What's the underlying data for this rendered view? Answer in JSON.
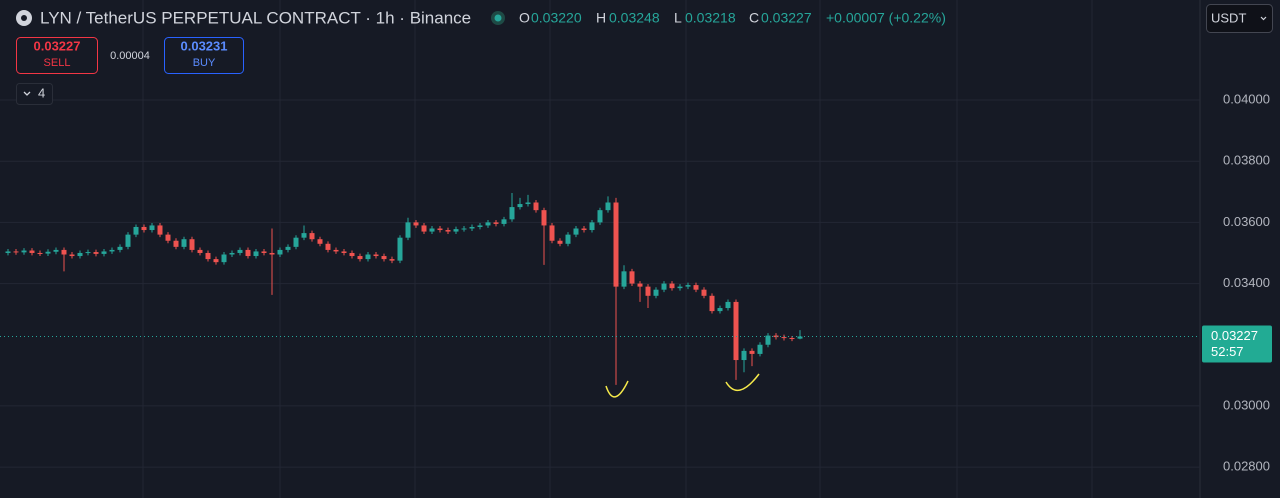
{
  "chart_data": {
    "type": "candlestick",
    "title": "LYN / TetherUS PERPETUAL CONTRACT · 1h · Binance",
    "legend": {
      "o_label": "O",
      "o": "0.03220",
      "h_label": "H",
      "h": "0.03248",
      "l_label": "L",
      "l": "0.03218",
      "c_label": "C",
      "c": "0.03227",
      "change": "+0.00007 (+0.22%)"
    },
    "up_color": "#26a69a",
    "down_color": "#ef5350",
    "ylim": [
      0.02699,
      0.04327
    ],
    "yticks": [
      {
        "value": 0.028,
        "label": "0.02800"
      },
      {
        "value": 0.03,
        "label": "0.03000"
      },
      {
        "value": 0.034,
        "label": "0.03400"
      },
      {
        "value": 0.036,
        "label": "0.03600"
      },
      {
        "value": 0.038,
        "label": "0.03800"
      },
      {
        "value": 0.04,
        "label": "0.04000"
      }
    ],
    "grid": true,
    "last_price": {
      "value": 0.03227,
      "label": "0.03227",
      "countdown": "52:57"
    },
    "open": [
      0.035,
      0.03505,
      0.03502,
      0.03508,
      0.035,
      0.03498,
      0.03504,
      0.0351,
      0.03495,
      0.0349,
      0.035,
      0.03503,
      0.03497,
      0.03505,
      0.0351,
      0.0352,
      0.0356,
      0.03585,
      0.03575,
      0.0359,
      0.0356,
      0.0354,
      0.0352,
      0.03545,
      0.0351,
      0.035,
      0.0348,
      0.0347,
      0.03495,
      0.035,
      0.0351,
      0.0349,
      0.03505,
      0.035,
      0.03495,
      0.0351,
      0.0352,
      0.0355,
      0.03565,
      0.03545,
      0.0353,
      0.0351,
      0.03505,
      0.035,
      0.0349,
      0.0348,
      0.03495,
      0.0349,
      0.0348,
      0.03475,
      0.0355,
      0.036,
      0.0359,
      0.0357,
      0.0358,
      0.03575,
      0.0357,
      0.03578,
      0.0358,
      0.03585,
      0.0359,
      0.036,
      0.03595,
      0.0361,
      0.0365,
      0.0366,
      0.03665,
      0.0364,
      0.0359,
      0.0354,
      0.0353,
      0.0356,
      0.0358,
      0.03575,
      0.036,
      0.0364,
      0.03665,
      0.0339,
      0.0344,
      0.034,
      0.0339,
      0.0336,
      0.0338,
      0.034,
      0.03385,
      0.0339,
      0.03395,
      0.0338,
      0.0336,
      0.0331,
      0.0332,
      0.0334,
      0.0315,
      0.0318,
      0.0317,
      0.032,
      0.0323,
      0.03225,
      0.03222,
      0.0322
    ],
    "high": [
      0.03513,
      0.03513,
      0.03516,
      0.03516,
      0.03508,
      0.03512,
      0.03518,
      0.03518,
      0.03503,
      0.03508,
      0.03511,
      0.03511,
      0.03513,
      0.03518,
      0.03528,
      0.03568,
      0.03593,
      0.03593,
      0.03598,
      0.03598,
      0.03568,
      0.03548,
      0.03553,
      0.03553,
      0.03518,
      0.03508,
      0.03488,
      0.03503,
      0.03508,
      0.03518,
      0.03518,
      0.03513,
      0.03513,
      0.0358,
      0.03518,
      0.03528,
      0.03558,
      0.0359,
      0.03573,
      0.03553,
      0.03538,
      0.03518,
      0.03513,
      0.03508,
      0.03498,
      0.03503,
      0.03503,
      0.03498,
      0.03488,
      0.03558,
      0.03615,
      0.03608,
      0.03598,
      0.03588,
      0.03588,
      0.03583,
      0.03586,
      0.03588,
      0.03593,
      0.03598,
      0.03608,
      0.03608,
      0.03618,
      0.03696,
      0.0368,
      0.0369,
      0.03673,
      0.03648,
      0.03598,
      0.03548,
      0.03568,
      0.03588,
      0.03588,
      0.03608,
      0.03648,
      0.03685,
      0.0368,
      0.0346,
      0.03448,
      0.03408,
      0.03398,
      0.03388,
      0.03408,
      0.03408,
      0.03398,
      0.03403,
      0.03403,
      0.03388,
      0.03368,
      0.03328,
      0.03348,
      0.03348,
      0.03188,
      0.03188,
      0.03208,
      0.03238,
      0.03238,
      0.03233,
      0.03228,
      0.03248
    ],
    "low": [
      0.03492,
      0.03494,
      0.03494,
      0.03492,
      0.0349,
      0.0349,
      0.03496,
      0.0344,
      0.03482,
      0.03482,
      0.03492,
      0.03489,
      0.03489,
      0.03497,
      0.03502,
      0.03512,
      0.03552,
      0.03567,
      0.03567,
      0.03552,
      0.03532,
      0.03512,
      0.03512,
      0.03502,
      0.03492,
      0.03472,
      0.03462,
      0.03462,
      0.03487,
      0.03492,
      0.03482,
      0.03482,
      0.03492,
      0.03363,
      0.03487,
      0.03502,
      0.03512,
      0.03542,
      0.03537,
      0.03522,
      0.03502,
      0.03497,
      0.03492,
      0.03482,
      0.03472,
      0.03472,
      0.03482,
      0.03472,
      0.03467,
      0.03467,
      0.03542,
      0.03582,
      0.03562,
      0.03562,
      0.03567,
      0.03562,
      0.03562,
      0.0357,
      0.03572,
      0.03577,
      0.03582,
      0.03587,
      0.03587,
      0.03602,
      0.03642,
      0.03652,
      0.03632,
      0.03461,
      0.03532,
      0.03522,
      0.03522,
      0.03552,
      0.03567,
      0.03567,
      0.03592,
      0.03632,
      0.03069,
      0.03382,
      0.03392,
      0.0334,
      0.0332,
      0.03352,
      0.03372,
      0.03377,
      0.03377,
      0.03382,
      0.03372,
      0.03352,
      0.03302,
      0.03302,
      0.03312,
      0.03085,
      0.0311,
      0.0313,
      0.03162,
      0.03192,
      0.03217,
      0.03214,
      0.03212,
      0.03218
    ],
    "close": [
      0.03505,
      0.03502,
      0.03508,
      0.035,
      0.03498,
      0.03504,
      0.0351,
      0.03495,
      0.0349,
      0.035,
      0.03503,
      0.03497,
      0.03505,
      0.0351,
      0.0352,
      0.0356,
      0.03585,
      0.03575,
      0.0359,
      0.0356,
      0.0354,
      0.0352,
      0.03545,
      0.0351,
      0.035,
      0.0348,
      0.0347,
      0.03495,
      0.035,
      0.0351,
      0.0349,
      0.03505,
      0.035,
      0.03495,
      0.0351,
      0.0352,
      0.0355,
      0.03565,
      0.03545,
      0.0353,
      0.0351,
      0.03505,
      0.035,
      0.0349,
      0.0348,
      0.03495,
      0.0349,
      0.0348,
      0.03475,
      0.0355,
      0.036,
      0.0359,
      0.0357,
      0.0358,
      0.03575,
      0.0357,
      0.03578,
      0.0358,
      0.03585,
      0.0359,
      0.036,
      0.03595,
      0.0361,
      0.0365,
      0.0366,
      0.03665,
      0.0364,
      0.0359,
      0.0354,
      0.0353,
      0.0356,
      0.0358,
      0.03575,
      0.036,
      0.0364,
      0.03665,
      0.0339,
      0.0344,
      0.034,
      0.0339,
      0.0336,
      0.0338,
      0.034,
      0.03385,
      0.0339,
      0.03395,
      0.0338,
      0.0336,
      0.0331,
      0.0332,
      0.0334,
      0.0315,
      0.0318,
      0.0317,
      0.032,
      0.0323,
      0.03225,
      0.03222,
      0.0322,
      0.03227
    ]
  },
  "ui": {
    "sell_price": "0.03227",
    "sell_label": "SELL",
    "spread": "0.00004",
    "buy_price": "0.03231",
    "buy_label": "BUY",
    "indicator_count": "4",
    "currency": "USDT"
  }
}
